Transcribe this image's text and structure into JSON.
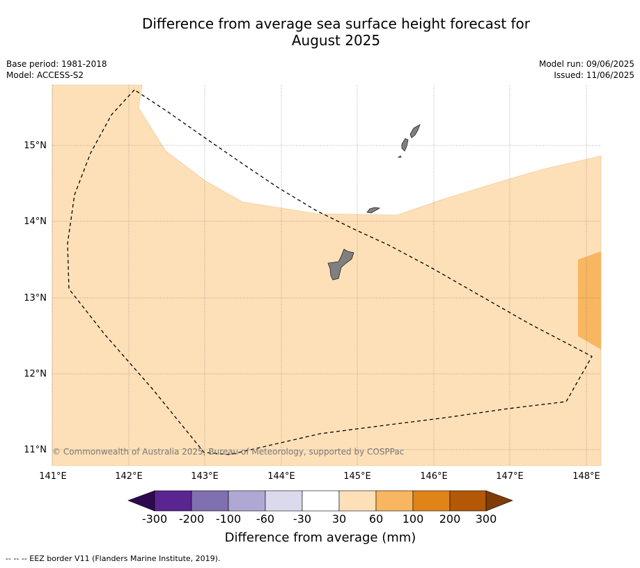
{
  "header": {
    "title_line1": "Difference from average sea surface height forecast for",
    "title_line2": "August 2025",
    "base_period": "Base period: 1981-2018",
    "model": "Model: ACCESS-S2",
    "model_run": "Model run: 09/06/2025",
    "issued": "Issued: 11/06/2025"
  },
  "map": {
    "lon_labels": [
      "141°E",
      "142°E",
      "143°E",
      "144°E",
      "145°E",
      "146°E",
      "147°E",
      "148°E"
    ],
    "lat_labels": [
      "15°N",
      "14°N",
      "13°N",
      "12°N",
      "11°N"
    ],
    "copyright": "© Commonwealth of Australia 2025, Bureau of Meteorology, supported by COSPPac"
  },
  "colorbar": {
    "tick_labels": [
      "-300",
      "-200",
      "-100",
      "-60",
      "-30",
      "30",
      "60",
      "100",
      "200",
      "300"
    ],
    "title": "Difference from average (mm)",
    "colors": [
      "#2d0a4e",
      "#5a2590",
      "#8170b0",
      "#b0a8d4",
      "#dadaec",
      "#ffffff",
      "#fde0b8",
      "#f8b660",
      "#e08418",
      "#b35806",
      "#7f3b08"
    ]
  },
  "footer": {
    "legend": "--  --  -- EEZ border V11 (Flanders Marine Institute, 2019)."
  }
}
